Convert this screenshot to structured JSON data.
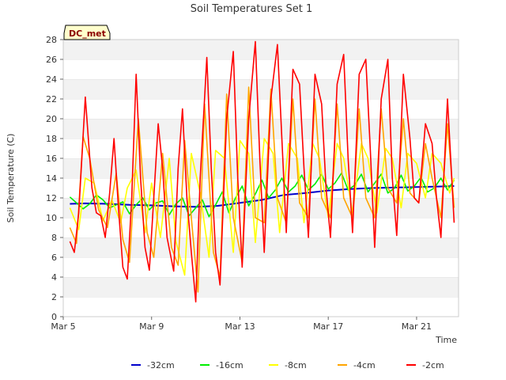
{
  "chart_data": {
    "type": "line",
    "title": "Soil Temperatures Set 1",
    "xlabel": "Time",
    "ylabel": "Soil Temperature (C)",
    "badge": "DC_met",
    "ylim": [
      0,
      28
    ],
    "yticks": [
      0,
      2,
      4,
      6,
      8,
      10,
      12,
      14,
      16,
      18,
      20,
      22,
      24,
      26,
      28
    ],
    "xlim": [
      5.0,
      22.9
    ],
    "xticks": [
      {
        "value": 5,
        "label": "Mar 5"
      },
      {
        "value": 9,
        "label": "Mar 9"
      },
      {
        "value": 13,
        "label": "Mar 13"
      },
      {
        "value": 17,
        "label": "Mar 17"
      },
      {
        "value": 21,
        "label": "Mar 21"
      }
    ],
    "grid": "horizontal bands",
    "legend_position": "bottom",
    "series": [
      {
        "name": "-32cm",
        "color": "#0000cc",
        "x": [
          5.3,
          6.0,
          7.0,
          8.0,
          9.0,
          10.0,
          11.0,
          12.0,
          13.0,
          14.0,
          15.0,
          16.0,
          17.0,
          18.0,
          19.0,
          20.0,
          21.0,
          22.0,
          22.7
        ],
        "y": [
          11.4,
          11.45,
          11.4,
          11.3,
          11.25,
          11.15,
          11.1,
          11.2,
          11.5,
          11.8,
          12.3,
          12.5,
          12.75,
          12.9,
          13.0,
          13.05,
          13.1,
          13.15,
          13.2
        ]
      },
      {
        "name": "-16cm",
        "color": "#00ee00",
        "x": [
          5.3,
          5.6,
          5.9,
          6.2,
          6.5,
          6.8,
          7.1,
          7.4,
          7.7,
          8.0,
          8.3,
          8.6,
          8.9,
          9.2,
          9.5,
          9.8,
          10.1,
          10.4,
          10.7,
          11.0,
          11.3,
          11.6,
          11.9,
          12.2,
          12.5,
          12.8,
          13.1,
          13.4,
          13.7,
          14.0,
          14.3,
          14.6,
          14.9,
          15.2,
          15.5,
          15.8,
          16.1,
          16.4,
          16.7,
          17.0,
          17.3,
          17.6,
          17.9,
          18.2,
          18.5,
          18.8,
          19.1,
          19.4,
          19.7,
          20.0,
          20.3,
          20.6,
          20.9,
          21.2,
          21.5,
          21.8,
          22.1,
          22.4,
          22.7
        ],
        "y": [
          12.1,
          11.5,
          10.9,
          11.4,
          12.3,
          11.8,
          11.0,
          11.3,
          11.6,
          10.4,
          11.3,
          12.0,
          10.8,
          11.5,
          11.7,
          10.3,
          11.4,
          12.0,
          10.2,
          11.0,
          11.8,
          10.1,
          11.3,
          12.6,
          10.5,
          12.0,
          13.2,
          11.2,
          12.4,
          13.8,
          12.0,
          12.8,
          14.0,
          12.6,
          13.2,
          14.3,
          12.8,
          13.4,
          14.4,
          12.9,
          13.5,
          14.5,
          12.8,
          13.3,
          14.4,
          12.6,
          13.5,
          14.4,
          12.5,
          13.0,
          14.3,
          12.7,
          13.2,
          14.1,
          12.6,
          13.0,
          14.0,
          12.8,
          13.8
        ]
      },
      {
        "name": "-8cm",
        "color": "#ffff00",
        "x": [
          5.3,
          5.7,
          6.0,
          6.4,
          6.8,
          7.2,
          7.6,
          7.9,
          8.3,
          8.7,
          9.0,
          9.4,
          9.8,
          10.1,
          10.5,
          10.8,
          11.2,
          11.6,
          11.9,
          12.3,
          12.7,
          13.0,
          13.4,
          13.7,
          14.1,
          14.5,
          14.8,
          15.2,
          15.6,
          15.9,
          16.3,
          16.6,
          17.0,
          17.4,
          17.7,
          18.1,
          18.5,
          18.8,
          19.2,
          19.6,
          19.9,
          20.3,
          20.6,
          21.0,
          21.4,
          21.7,
          22.1,
          22.5,
          22.7
        ],
        "y": [
          11.0,
          8.8,
          14.0,
          13.5,
          9.7,
          11.8,
          9.5,
          13.0,
          14.8,
          8.5,
          13.5,
          8.0,
          16.0,
          7.6,
          4.2,
          16.5,
          12.5,
          6.0,
          16.8,
          16.0,
          6.5,
          17.8,
          16.5,
          7.5,
          18.0,
          16.5,
          8.5,
          17.5,
          16.0,
          9.5,
          17.5,
          16.0,
          10.0,
          17.5,
          16.0,
          10.5,
          17.5,
          16.0,
          10.5,
          17.0,
          16.0,
          11.0,
          16.5,
          15.5,
          12.0,
          16.5,
          15.5,
          12.5,
          14.0
        ]
      },
      {
        "name": "-4cm",
        "color": "#ffa500",
        "x": [
          5.3,
          5.6,
          5.9,
          6.2,
          6.6,
          7.0,
          7.4,
          7.7,
          8.0,
          8.4,
          8.8,
          9.1,
          9.5,
          9.9,
          10.2,
          10.5,
          10.8,
          11.1,
          11.4,
          11.8,
          12.1,
          12.4,
          12.7,
          13.1,
          13.4,
          13.7,
          14.1,
          14.4,
          14.7,
          15.1,
          15.4,
          15.7,
          16.1,
          16.4,
          16.7,
          17.1,
          17.4,
          17.7,
          18.1,
          18.4,
          18.7,
          19.1,
          19.4,
          19.7,
          20.1,
          20.4,
          20.7,
          21.1,
          21.4,
          21.7,
          22.1,
          22.4,
          22.7
        ],
        "y": [
          9.0,
          7.4,
          18.2,
          16.0,
          10.8,
          9.0,
          14.5,
          7.8,
          5.5,
          20.0,
          8.5,
          6.0,
          16.5,
          7.0,
          5.2,
          17.8,
          10.0,
          2.5,
          21.5,
          6.5,
          4.0,
          22.5,
          10.0,
          5.5,
          23.2,
          10.0,
          9.5,
          23.0,
          12.0,
          9.5,
          22.0,
          11.5,
          10.0,
          22.0,
          12.0,
          10.0,
          21.5,
          12.0,
          10.0,
          21.0,
          12.0,
          10.0,
          21.0,
          13.0,
          11.5,
          20.0,
          12.5,
          11.5,
          17.5,
          14.0,
          10.0,
          19.5,
          11.0
        ]
      },
      {
        "name": "-2cm",
        "color": "#ff0000",
        "x": [
          5.3,
          5.5,
          5.7,
          6.0,
          6.3,
          6.5,
          6.7,
          6.9,
          7.1,
          7.3,
          7.5,
          7.7,
          7.9,
          8.1,
          8.3,
          8.5,
          8.7,
          8.9,
          9.1,
          9.3,
          9.5,
          9.7,
          10.0,
          10.2,
          10.4,
          10.6,
          10.8,
          11.0,
          11.2,
          11.5,
          11.7,
          11.9,
          12.1,
          12.4,
          12.7,
          12.9,
          13.1,
          13.4,
          13.7,
          13.9,
          14.1,
          14.4,
          14.7,
          14.9,
          15.1,
          15.4,
          15.7,
          15.9,
          16.1,
          16.4,
          16.7,
          16.9,
          17.1,
          17.4,
          17.7,
          17.9,
          18.1,
          18.4,
          18.7,
          18.9,
          19.1,
          19.4,
          19.7,
          19.9,
          20.1,
          20.4,
          20.7,
          20.9,
          21.1,
          21.4,
          21.7,
          21.9,
          22.1,
          22.4,
          22.7
        ],
        "y": [
          7.6,
          6.5,
          10.5,
          22.2,
          13.0,
          10.5,
          10.2,
          8.0,
          12.5,
          18.0,
          11.0,
          5.0,
          3.8,
          12.0,
          24.5,
          14.0,
          7.0,
          4.7,
          12.0,
          19.5,
          15.0,
          8.0,
          4.6,
          15.0,
          21.0,
          12.0,
          6.5,
          1.5,
          14.0,
          26.2,
          15.0,
          6.5,
          3.2,
          20.0,
          26.8,
          14.0,
          5.0,
          20.0,
          27.8,
          16.0,
          6.5,
          22.0,
          27.5,
          18.0,
          8.5,
          25.0,
          23.5,
          15.0,
          8.0,
          24.5,
          21.5,
          13.0,
          8.0,
          23.5,
          26.5,
          16.0,
          8.5,
          24.5,
          26.0,
          17.0,
          7.0,
          22.0,
          26.0,
          14.0,
          8.2,
          24.5,
          18.0,
          12.0,
          11.5,
          19.5,
          17.5,
          12.0,
          8.0,
          22.0,
          9.5
        ]
      }
    ]
  }
}
